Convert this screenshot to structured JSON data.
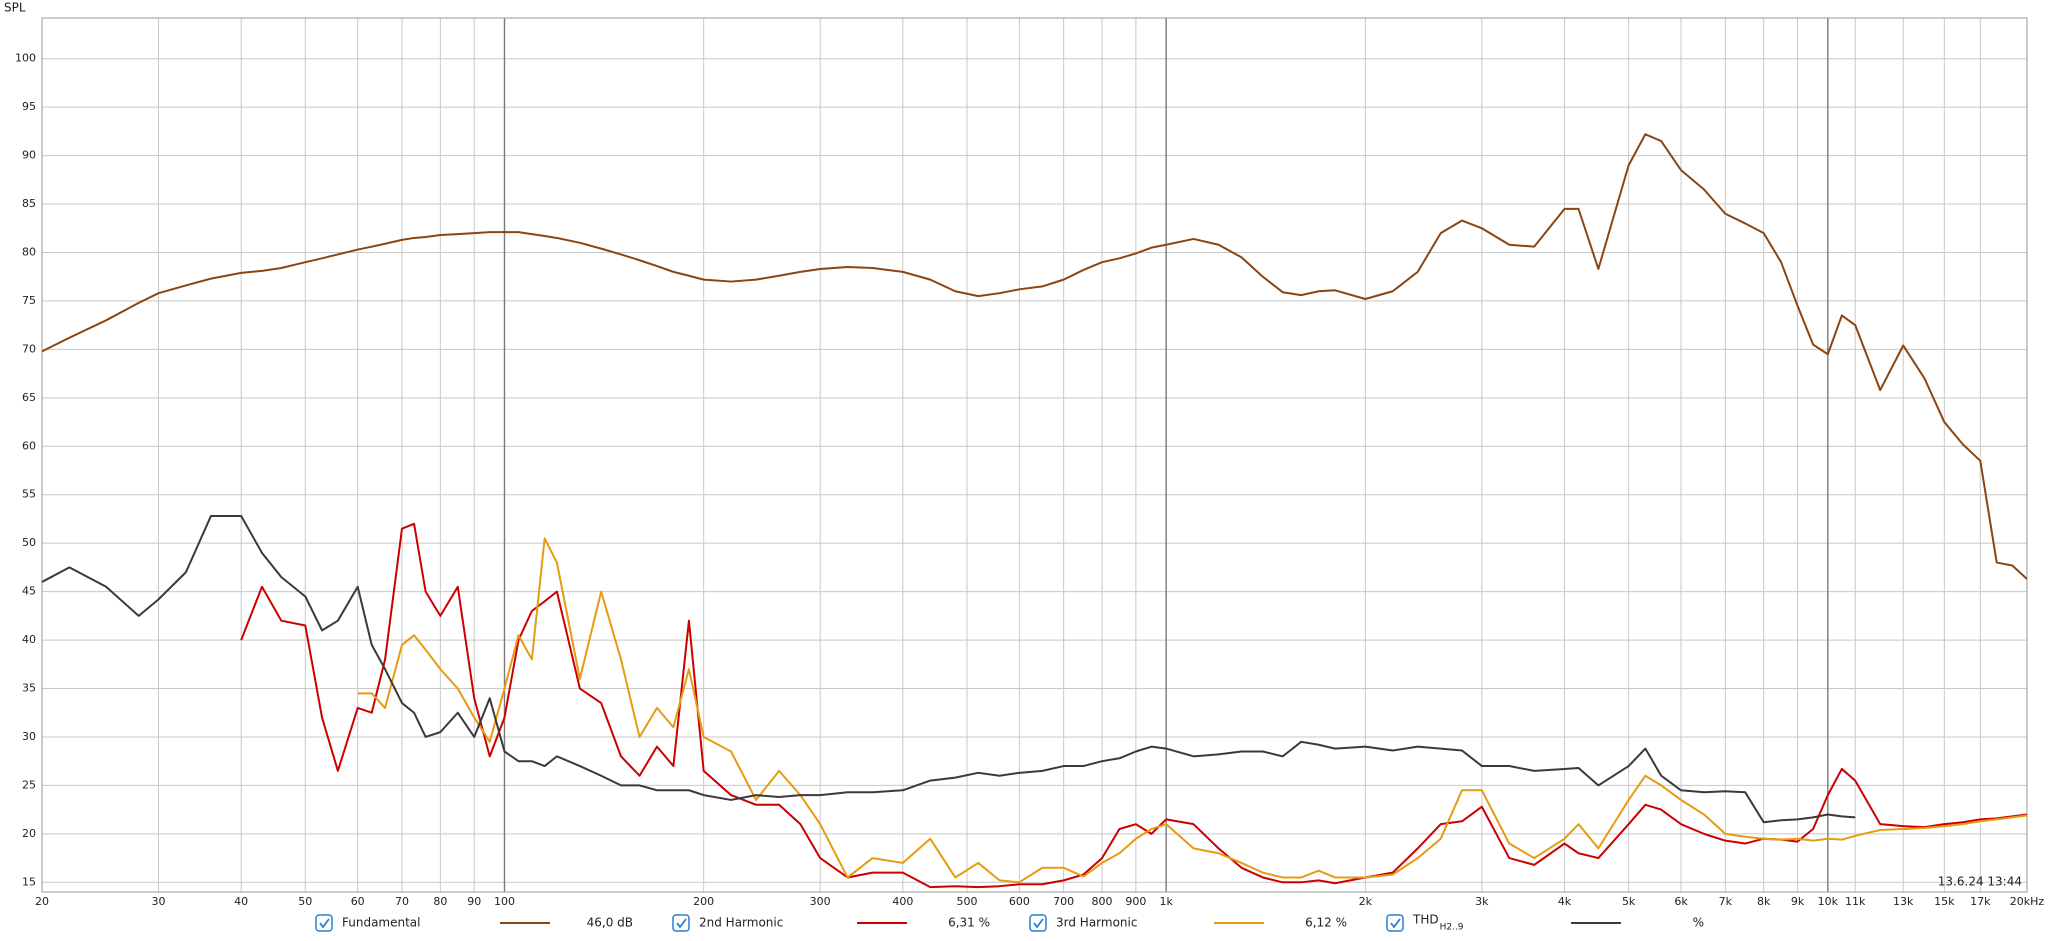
{
  "chart_data": {
    "type": "line",
    "y_label": "SPL",
    "timestamp": "13.6.24 13:44",
    "log_x": true,
    "grid": true,
    "xlim": [
      20,
      20000
    ],
    "ylim": [
      14,
      104.2
    ],
    "yticks": [
      15,
      20,
      25,
      30,
      35,
      40,
      45,
      50,
      55,
      60,
      65,
      70,
      75,
      80,
      85,
      90,
      95,
      100
    ],
    "xticks": [
      20,
      30,
      40,
      50,
      60,
      70,
      80,
      90,
      100,
      200,
      300,
      400,
      500,
      600,
      700,
      800,
      900,
      {
        "value": 1000,
        "label": "1k"
      },
      {
        "value": 2000,
        "label": "2k"
      },
      {
        "value": 3000,
        "label": "3k"
      },
      {
        "value": 4000,
        "label": "4k"
      },
      {
        "value": 5000,
        "label": "5k"
      },
      {
        "value": 6000,
        "label": "6k"
      },
      {
        "value": 7000,
        "label": "7k"
      },
      {
        "value": 8000,
        "label": "8k"
      },
      {
        "value": 9000,
        "label": "9k"
      },
      {
        "value": 10000,
        "label": "10k"
      },
      {
        "value": 11000,
        "label": "11k"
      },
      {
        "value": 13000,
        "label": "13k"
      },
      {
        "value": 15000,
        "label": "15k"
      },
      {
        "value": 17000,
        "label": "17k"
      },
      {
        "value": 20000,
        "label": "20kHz"
      }
    ],
    "x": [
      20,
      22,
      25,
      28,
      30,
      33,
      36,
      40,
      43,
      46,
      50,
      53,
      56,
      60,
      63,
      66,
      70,
      73,
      76,
      80,
      85,
      90,
      95,
      100,
      105,
      110,
      115,
      120,
      130,
      140,
      150,
      160,
      170,
      180,
      190,
      200,
      220,
      240,
      260,
      280,
      300,
      330,
      360,
      400,
      440,
      480,
      520,
      560,
      600,
      650,
      700,
      750,
      800,
      850,
      900,
      950,
      1000,
      1100,
      1200,
      1300,
      1400,
      1500,
      1600,
      1700,
      1800,
      2000,
      2200,
      2400,
      2600,
      2800,
      3000,
      3300,
      3600,
      4000,
      4200,
      4500,
      5000,
      5300,
      5600,
      6000,
      6500,
      7000,
      7500,
      8000,
      8500,
      9000,
      9500,
      10000,
      10500,
      11000,
      12000,
      13000,
      14000,
      15000,
      16000,
      17000,
      18000,
      19000,
      20000
    ],
    "series": [
      {
        "name": "Fundamental",
        "color": "#8b4513",
        "readout": "46,0 dB",
        "values": [
          69.8,
          71.2,
          73,
          74.8,
          75.8,
          76.6,
          77.3,
          77.9,
          78.1,
          78.4,
          79,
          79.4,
          79.8,
          80.3,
          80.6,
          80.9,
          81.3,
          81.5,
          81.6,
          81.8,
          81.9,
          82,
          82.1,
          82.1,
          82.1,
          81.9,
          81.7,
          81.5,
          81,
          80.4,
          79.8,
          79.2,
          78.6,
          78,
          77.6,
          77.2,
          77,
          77.2,
          77.6,
          78,
          78.3,
          78.5,
          78.4,
          78,
          77.2,
          76,
          75.5,
          75.8,
          76.2,
          76.5,
          77.2,
          78.2,
          79,
          79.4,
          79.9,
          80.5,
          80.8,
          81.4,
          80.8,
          79.5,
          77.5,
          75.9,
          75.6,
          76,
          76.1,
          75.2,
          76,
          78,
          82,
          83.3,
          82.5,
          80.8,
          80.6,
          84.5,
          84.5,
          78.3,
          89,
          92.2,
          91.5,
          88.5,
          86.5,
          84,
          83,
          82,
          79,
          74.5,
          70.5,
          69.5,
          73.5,
          72.5,
          65.8,
          70.4,
          67,
          62.5,
          60.2,
          58.5,
          48,
          47.7,
          46.3
        ]
      },
      {
        "name": "2nd Harmonic",
        "color": "#cc0000",
        "readout": "6,31 %",
        "values": [
          null,
          null,
          null,
          null,
          null,
          null,
          null,
          40,
          45.5,
          42,
          41.5,
          32,
          26.5,
          33,
          32.5,
          38,
          51.5,
          52,
          45,
          42.5,
          45.5,
          34,
          28,
          32,
          40,
          43,
          44,
          45,
          35,
          33.5,
          28,
          26,
          29,
          27,
          42,
          26.5,
          24,
          23,
          23,
          21,
          17.5,
          15.5,
          16,
          16,
          14.5,
          14.6,
          14.5,
          14.6,
          14.8,
          14.8,
          15.2,
          15.8,
          17.5,
          20.5,
          21,
          20,
          21.5,
          21,
          18.5,
          16.5,
          15.5,
          15,
          15,
          15.2,
          14.9,
          15.5,
          16,
          18.5,
          21,
          21.3,
          22.8,
          17.5,
          16.8,
          19,
          18,
          17.5,
          21,
          23,
          22.5,
          21,
          20,
          19.3,
          19,
          19.5,
          19.4,
          19.2,
          20.5,
          24,
          26.7,
          25.5,
          21,
          20.8,
          20.7,
          21,
          21.2,
          21.5,
          21.6,
          21.8,
          22
        ]
      },
      {
        "name": "3rd Harmonic",
        "color": "#e69b12",
        "readout": "6,12 %",
        "values": [
          null,
          null,
          null,
          null,
          null,
          null,
          null,
          null,
          null,
          null,
          null,
          null,
          null,
          34.5,
          34.5,
          33,
          39.5,
          40.5,
          39,
          37,
          35,
          32,
          29.5,
          35,
          40.5,
          38,
          50.5,
          48,
          36,
          45,
          38,
          30,
          33,
          31,
          37,
          30,
          28.5,
          23.5,
          26.5,
          24,
          21,
          15.5,
          17.5,
          17,
          19.5,
          15.5,
          17,
          15.2,
          15,
          16.5,
          16.5,
          15.6,
          17,
          18,
          19.5,
          20.5,
          21,
          18.5,
          18,
          17,
          16,
          15.5,
          15.5,
          16.2,
          15.5,
          15.5,
          15.8,
          17.5,
          19.5,
          24.5,
          24.5,
          19,
          17.5,
          19.5,
          21,
          18.5,
          23.5,
          26,
          25,
          23.5,
          22,
          20,
          19.7,
          19.5,
          19.4,
          19.5,
          19.3,
          19.5,
          19.4,
          19.8,
          20.4,
          20.5,
          20.6,
          20.8,
          21,
          21.3,
          21.5,
          21.7,
          21.9
        ]
      },
      {
        "name": "THD",
        "name_subscript": "H2..9",
        "color": "#3a3a3a",
        "readout": "%",
        "values": [
          46,
          47.5,
          45.5,
          42.5,
          44.2,
          47,
          52.8,
          52.8,
          49,
          46.5,
          44.5,
          41,
          42,
          45.5,
          39.5,
          37,
          33.5,
          32.5,
          30,
          30.5,
          32.5,
          30,
          34,
          28.5,
          27.5,
          27.5,
          27,
          28,
          27,
          26,
          25,
          25,
          24.5,
          24.5,
          24.5,
          24,
          23.5,
          24,
          23.8,
          24,
          24,
          24.3,
          24.3,
          24.5,
          25.5,
          25.8,
          26.3,
          26,
          26.3,
          26.5,
          27,
          27,
          27.5,
          27.8,
          28.5,
          29,
          28.8,
          28,
          28.2,
          28.5,
          28.5,
          28,
          29.5,
          29.2,
          28.8,
          29,
          28.6,
          29,
          28.8,
          28.6,
          27,
          27,
          26.5,
          26.7,
          26.8,
          25,
          27,
          28.8,
          26,
          24.5,
          24.3,
          24.4,
          24.3,
          21.2,
          21.4,
          21.5,
          21.7,
          22,
          21.8,
          21.7,
          null,
          null,
          null,
          null,
          null,
          null,
          null,
          null,
          null
        ]
      }
    ]
  }
}
